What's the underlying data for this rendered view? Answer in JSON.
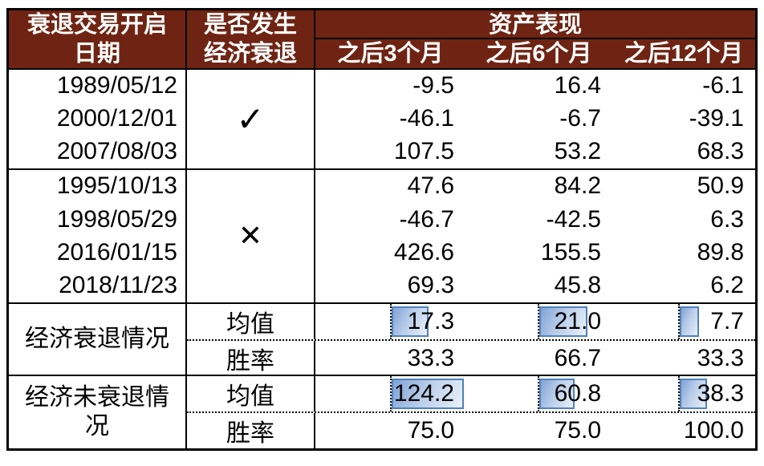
{
  "chart_data": {
    "type": "table",
    "title": "资产表现",
    "columns": [
      "衰退交易开启日期",
      "是否发生经济衰退",
      "之后3个月",
      "之后6个月",
      "之后12个月"
    ],
    "column_group": {
      "label": "资产表现",
      "spans": [
        "之后3个月",
        "之后6个月",
        "之后12个月"
      ]
    },
    "rows": [
      [
        "1989/05/12",
        "✓",
        -9.5,
        16.4,
        -6.1
      ],
      [
        "2000/12/01",
        "✓",
        -46.1,
        -6.7,
        -39.1
      ],
      [
        "2007/08/03",
        "✓",
        107.5,
        53.2,
        68.3
      ],
      [
        "1995/10/13",
        "✕",
        47.6,
        84.2,
        50.9
      ],
      [
        "1998/05/29",
        "✕",
        -46.7,
        -42.5,
        6.3
      ],
      [
        "2016/01/15",
        "✕",
        426.6,
        155.5,
        89.8
      ],
      [
        "2018/11/23",
        "✕",
        69.3,
        45.8,
        6.2
      ],
      [
        "经济衰退情况",
        "均值",
        17.3,
        21.0,
        7.7
      ],
      [
        "经济衰退情况",
        "胜率",
        33.3,
        66.7,
        33.3
      ],
      [
        "经济未衰退情况",
        "均值",
        124.2,
        60.8,
        38.3
      ],
      [
        "经济未衰退情况",
        "胜率",
        75.0,
        75.0,
        100.0
      ]
    ],
    "layout": "均值 rows have blue gradient data bars; grid on"
  },
  "header": {
    "col_date": {
      "line1": "衰退交易开启",
      "line2": "日期"
    },
    "col_flag": {
      "line1": "是否发生",
      "line2": "经济衰退"
    },
    "asset_title": "资产表现",
    "periods": [
      "之后3个月",
      "之后6个月",
      "之后12个月"
    ]
  },
  "recession_block": {
    "flag": "✓",
    "rows": [
      {
        "date": "1989/05/12",
        "v": [
          "-9.5",
          "16.4",
          "-6.1"
        ]
      },
      {
        "date": "2000/12/01",
        "v": [
          "-46.1",
          "-6.7",
          "-39.1"
        ]
      },
      {
        "date": "2007/08/03",
        "v": [
          "107.5",
          "53.2",
          "68.3"
        ]
      }
    ]
  },
  "no_recession_block": {
    "flag": "✕",
    "rows": [
      {
        "date": "1995/10/13",
        "v": [
          "47.6",
          "84.2",
          "50.9"
        ]
      },
      {
        "date": "1998/05/29",
        "v": [
          "-46.7",
          "-42.5",
          "6.3"
        ]
      },
      {
        "date": "2016/01/15",
        "v": [
          "426.6",
          "155.5",
          "89.8"
        ]
      },
      {
        "date": "2018/11/23",
        "v": [
          "69.3",
          "45.8",
          "6.2"
        ]
      }
    ]
  },
  "summary_recession": {
    "label": "经济衰退情况",
    "mean_label": "均值",
    "win_label": "胜率",
    "mean": {
      "v": [
        "17.3",
        "21.0",
        "7.7"
      ],
      "bar_pct": [
        50,
        66,
        26
      ]
    },
    "win": {
      "v": [
        "33.3",
        "66.7",
        "33.3"
      ]
    }
  },
  "summary_no_recession": {
    "label": "经济未衰退情况",
    "mean_label": "均值",
    "win_label": "胜率",
    "mean": {
      "v": [
        "124.2",
        "60.8",
        "38.3"
      ],
      "bar_pct": [
        98,
        48,
        36
      ]
    },
    "win": {
      "v": [
        "75.0",
        "75.0",
        "100.0"
      ]
    }
  },
  "colors": {
    "header_bg": "#6F2413",
    "bar_border": "#4F81BD",
    "bar_fill_start": "#7FA3D6",
    "bar_fill_end": "#E9F0F9"
  }
}
